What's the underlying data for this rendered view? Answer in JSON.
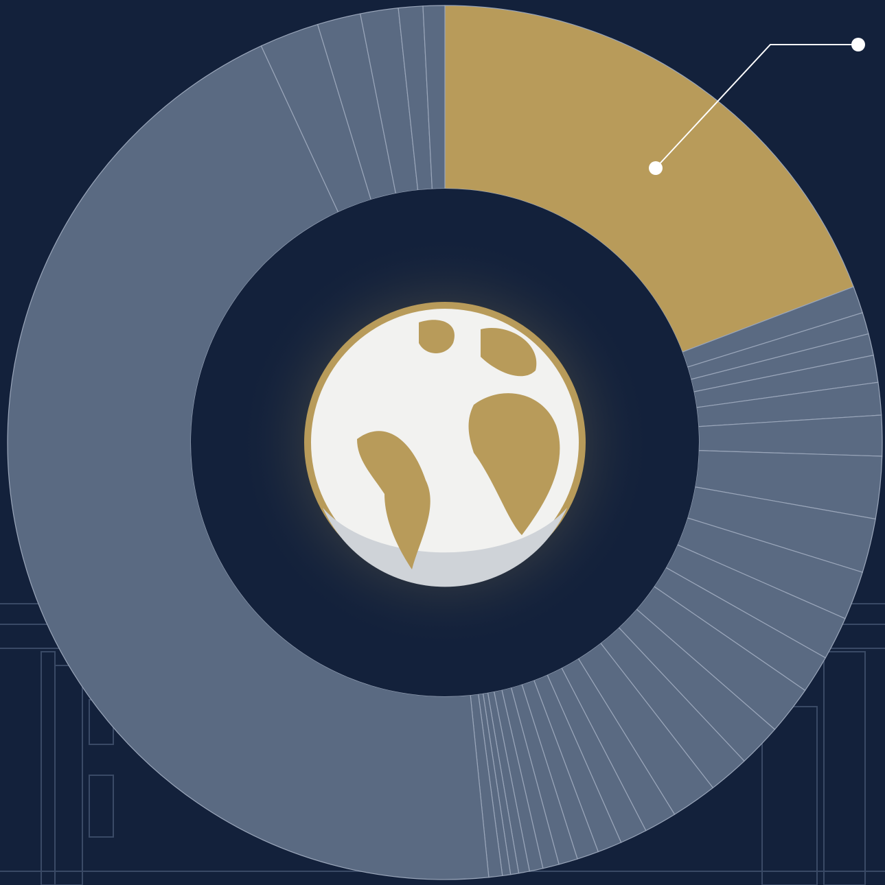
{
  "chart_data": {
    "type": "donut",
    "values": [
      19.2,
      1.0,
      0.8,
      0.8,
      1.0,
      1.2,
      1.5,
      2.3,
      2.0,
      1.8,
      1.6,
      1.4,
      1.8,
      1.6,
      1.5,
      1.7,
      1.2,
      1.0,
      0.9,
      0.8,
      0.7,
      0.6,
      0.5,
      0.4,
      0.3,
      0.3,
      0.5,
      44.7,
      2.2,
      1.6,
      1.4,
      0.9,
      0.8
    ],
    "colors": [
      "#b89b5a",
      "#5a6a82",
      "#5a6a82",
      "#5a6a82",
      "#5a6a82",
      "#5a6a82",
      "#5a6a82",
      "#5a6a82",
      "#5a6a82",
      "#5a6a82",
      "#5a6a82",
      "#5a6a82",
      "#5a6a82",
      "#5a6a82",
      "#5a6a82",
      "#5a6a82",
      "#5a6a82",
      "#5a6a82",
      "#5a6a82",
      "#5a6a82",
      "#5a6a82",
      "#5a6a82",
      "#5a6a82",
      "#5a6a82",
      "#5a6a82",
      "#5a6a82",
      "#5a6a82",
      "#5a6a82",
      "#5a6a82",
      "#5a6a82",
      "#5a6a82",
      "#5a6a82",
      "#5a6a82"
    ]
  }
}
